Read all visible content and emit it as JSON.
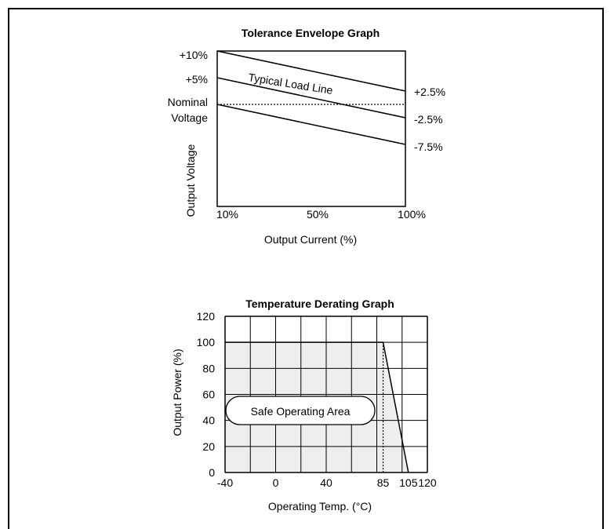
{
  "chart_data": [
    {
      "type": "line",
      "title": "Tolerance Envelope Graph",
      "xlabel": "Output Current (%)",
      "ylabel": "Output Voltage",
      "x_ticks": [
        "10%",
        "50%",
        "100%"
      ],
      "left_labels": [
        "+10%",
        "+5%",
        "Nominal",
        "Voltage"
      ],
      "right_labels": [
        "+2.5%",
        "-2.5%",
        "-7.5%"
      ],
      "annotation": "Typical Load Line",
      "series": [
        {
          "x": [
            10,
            100
          ],
          "values": [
            10,
            2.5
          ]
        },
        {
          "x": [
            10,
            100
          ],
          "values": [
            5,
            -2.5
          ]
        },
        {
          "x": [
            10,
            100
          ],
          "values": [
            0,
            -7.5
          ]
        }
      ],
      "reference_line": {
        "value": 0,
        "style": "dotted"
      }
    },
    {
      "type": "area",
      "title": "Temperature Derating Graph",
      "xlabel": "Operating Temp. (°C)",
      "ylabel": "Output Power (%)",
      "x_ticks": [
        "-40",
        "0",
        "40",
        "85",
        "105",
        "120"
      ],
      "y_ticks": [
        "0",
        "20",
        "40",
        "60",
        "80",
        "100",
        "120"
      ],
      "xlim": [
        -40,
        120
      ],
      "ylim": [
        0,
        120
      ],
      "grid": true,
      "annotation": "Safe Operating Area",
      "series": [
        {
          "x": [
            -40,
            85,
            105
          ],
          "values": [
            100,
            100,
            0
          ]
        }
      ],
      "marker_line": {
        "x": 85,
        "style": "dotted"
      },
      "colors": {
        "area": "#eeeeee",
        "line": "#000000"
      }
    }
  ]
}
